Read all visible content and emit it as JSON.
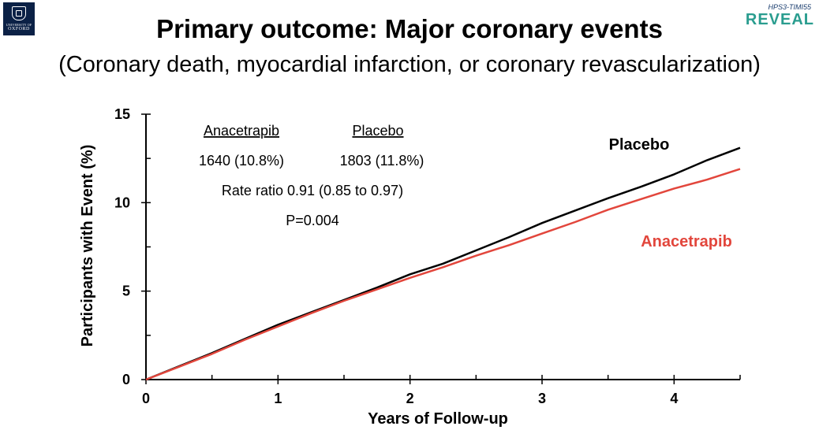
{
  "header": {
    "title": "Primary outcome: Major coronary events",
    "subtitle": "(Coronary death, myocardial infarction, or coronary revascularization)"
  },
  "logos": {
    "oxford": {
      "sub": "UNIVERSITY OF",
      "main": "OXFORD"
    },
    "reveal": {
      "top": "HPS3-TIMI55",
      "main": "REVEAL"
    }
  },
  "annotation": {
    "col1_header": "Anacetrapib",
    "col2_header": "Placebo",
    "col1_value": "1640 (10.8%)",
    "col2_value": "1803 (11.8%)",
    "rate_ratio": "Rate ratio 0.91 (0.85 to 0.97)",
    "p_value": "P=0.004"
  },
  "chart_data": {
    "type": "line",
    "xlabel": "Years of Follow-up",
    "ylabel": "Participants with Event (%)",
    "xlim": [
      0,
      4.5
    ],
    "ylim": [
      0,
      15
    ],
    "x_ticks": [
      0,
      1,
      2,
      3,
      4
    ],
    "y_ticks": [
      0,
      5,
      10,
      15
    ],
    "grid": false,
    "series": [
      {
        "name": "Placebo",
        "color": "#000000",
        "x": [
          0,
          0.25,
          0.5,
          0.75,
          1.0,
          1.25,
          1.5,
          1.75,
          2.0,
          2.25,
          2.5,
          2.75,
          3.0,
          3.25,
          3.5,
          3.75,
          4.0,
          4.25,
          4.5
        ],
        "y": [
          0,
          0.75,
          1.5,
          2.3,
          3.1,
          3.8,
          4.5,
          5.2,
          5.95,
          6.55,
          7.3,
          8.05,
          8.85,
          9.55,
          10.25,
          10.9,
          11.6,
          12.4,
          13.1
        ]
      },
      {
        "name": "Anacetrapib",
        "color": "#e2463c",
        "x": [
          0,
          0.25,
          0.5,
          0.75,
          1.0,
          1.25,
          1.5,
          1.75,
          2.0,
          2.25,
          2.5,
          2.75,
          3.0,
          3.25,
          3.5,
          3.75,
          4.0,
          4.25,
          4.5
        ],
        "y": [
          0,
          0.72,
          1.45,
          2.25,
          3.0,
          3.75,
          4.45,
          5.1,
          5.75,
          6.35,
          7.0,
          7.6,
          8.25,
          8.9,
          9.6,
          10.2,
          10.8,
          11.3,
          11.9
        ]
      }
    ]
  }
}
